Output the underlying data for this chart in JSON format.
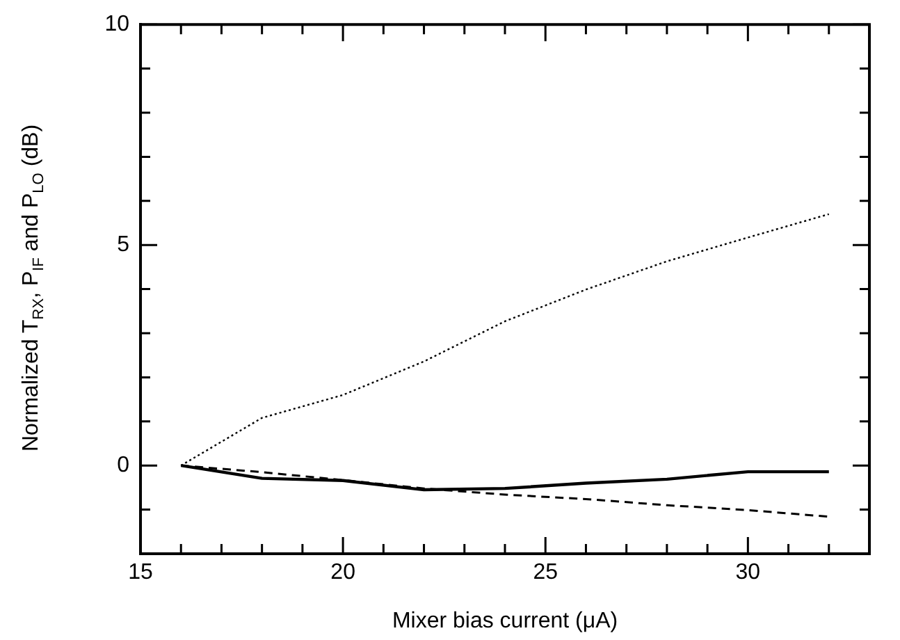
{
  "chart_data": {
    "type": "line",
    "xlabel": "Mixer bias current (μA)",
    "ylabel": "Normalized T$_{RX}$, P$_{IF}$ and P$_{LO}$ (dB)",
    "xlim": [
      15,
      33
    ],
    "ylim": [
      -2,
      10
    ],
    "xticks": [
      15,
      {
        "value": 16,
        "label": null
      },
      {
        "value": 17,
        "label": null
      },
      {
        "value": 18,
        "label": null
      },
      {
        "value": 19,
        "label": null
      },
      20,
      {
        "value": 21,
        "label": null
      },
      {
        "value": 22,
        "label": null
      },
      {
        "value": 23,
        "label": null
      },
      {
        "value": 24,
        "label": null
      },
      25,
      {
        "value": 26,
        "label": null
      },
      {
        "value": 27,
        "label": null
      },
      {
        "value": 28,
        "label": null
      },
      {
        "value": 29,
        "label": null
      },
      30,
      {
        "value": 31,
        "label": null
      },
      {
        "value": 32,
        "label": null
      }
    ],
    "yticks": [
      {
        "value": -1,
        "label": null
      },
      0,
      {
        "value": 1,
        "label": null
      },
      {
        "value": 2,
        "label": null
      },
      {
        "value": 3,
        "label": null
      },
      {
        "value": 4,
        "label": null
      },
      5,
      {
        "value": 6,
        "label": null
      },
      {
        "value": 7,
        "label": null
      },
      {
        "value": 8,
        "label": null
      },
      {
        "value": 9,
        "label": null
      },
      10
    ],
    "x": [
      16,
      18,
      20,
      22,
      24,
      26,
      28,
      30,
      32
    ],
    "grid": false,
    "legend": false,
    "marker": "none",
    "series": [
      {
        "color": "#000000",
        "line_style": "dotted",
        "values": [
          0,
          1.08,
          1.6,
          2.36,
          3.27,
          3.99,
          4.63,
          5.17,
          5.7
        ]
      },
      {
        "color": "#000000",
        "line_style": "solid",
        "values": [
          0,
          -0.29,
          -0.34,
          -0.55,
          -0.52,
          -0.4,
          -0.31,
          -0.14,
          -0.14
        ]
      },
      {
        "color": "#000000",
        "line_style": "dashed",
        "values": [
          0,
          -0.15,
          -0.33,
          -0.52,
          -0.66,
          -0.76,
          -0.9,
          -1.01,
          -1.16
        ]
      }
    ]
  }
}
